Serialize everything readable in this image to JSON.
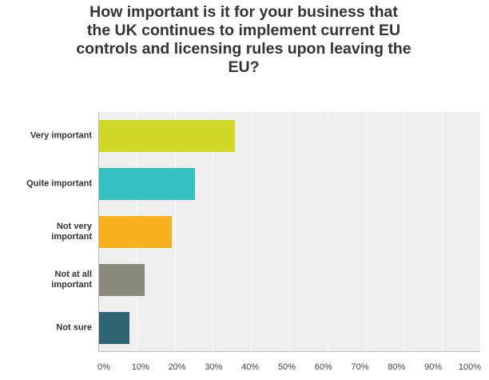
{
  "chart_data": {
    "type": "bar",
    "orientation": "horizontal",
    "title": "How important is it for your business that the UK continues to implement current EU controls and licensing rules upon leaving the EU?",
    "categories": [
      "Very important",
      "Quite important",
      "Not very important",
      "Not at all important",
      "Not sure"
    ],
    "values": [
      35.5,
      25,
      19,
      12,
      8
    ],
    "colors": [
      "#d0d727",
      "#36c0c2",
      "#f7b01e",
      "#8a8a7a",
      "#2f6473"
    ],
    "xlim": [
      0,
      100
    ],
    "xticks": [
      {
        "value": 0,
        "label": "0%"
      },
      {
        "value": 10,
        "label": "10%"
      },
      {
        "value": 20,
        "label": "20%"
      },
      {
        "value": 30,
        "label": "30%"
      },
      {
        "value": 40,
        "label": "40%"
      },
      {
        "value": 50,
        "label": "50%"
      },
      {
        "value": 60,
        "label": "60%"
      },
      {
        "value": 70,
        "label": "70%"
      },
      {
        "value": 80,
        "label": "80%"
      },
      {
        "value": 90,
        "label": "90%"
      },
      {
        "value": 100,
        "label": "100%"
      }
    ],
    "grid": true
  }
}
